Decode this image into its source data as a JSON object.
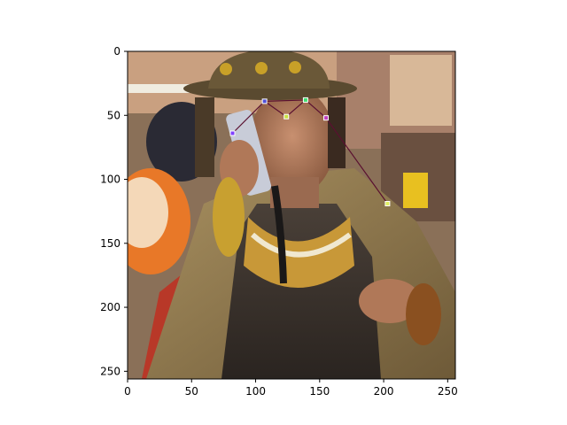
{
  "chart_data": {
    "type": "scatter",
    "title": "",
    "xlabel": "",
    "ylabel": "",
    "xlim": [
      0,
      256
    ],
    "ylim": [
      256,
      0
    ],
    "grid": false,
    "x_ticks": [
      0,
      50,
      100,
      150,
      200,
      250
    ],
    "y_ticks": [
      0,
      50,
      100,
      150,
      200,
      250
    ],
    "x_tick_labels": [
      "0",
      "50",
      "100",
      "150",
      "200",
      "250"
    ],
    "y_tick_labels": [
      "0",
      "50",
      "100",
      "150",
      "200",
      "250"
    ],
    "keypoints": [
      {
        "x": 82,
        "y": 64,
        "color": "#8040ff"
      },
      {
        "x": 107,
        "y": 39,
        "color": "#5050d8"
      },
      {
        "x": 124,
        "y": 51,
        "color": "#c8e040"
      },
      {
        "x": 139,
        "y": 38,
        "color": "#40e070"
      },
      {
        "x": 155,
        "y": 52,
        "color": "#c040c0"
      },
      {
        "x": 203,
        "y": 119,
        "color": "#e0f060"
      }
    ],
    "skeleton": [
      [
        0,
        1
      ],
      [
        1,
        2
      ],
      [
        2,
        3
      ],
      [
        3,
        4
      ],
      [
        4,
        5
      ],
      [
        1,
        3
      ]
    ],
    "skeleton_color": "#5a1030"
  }
}
